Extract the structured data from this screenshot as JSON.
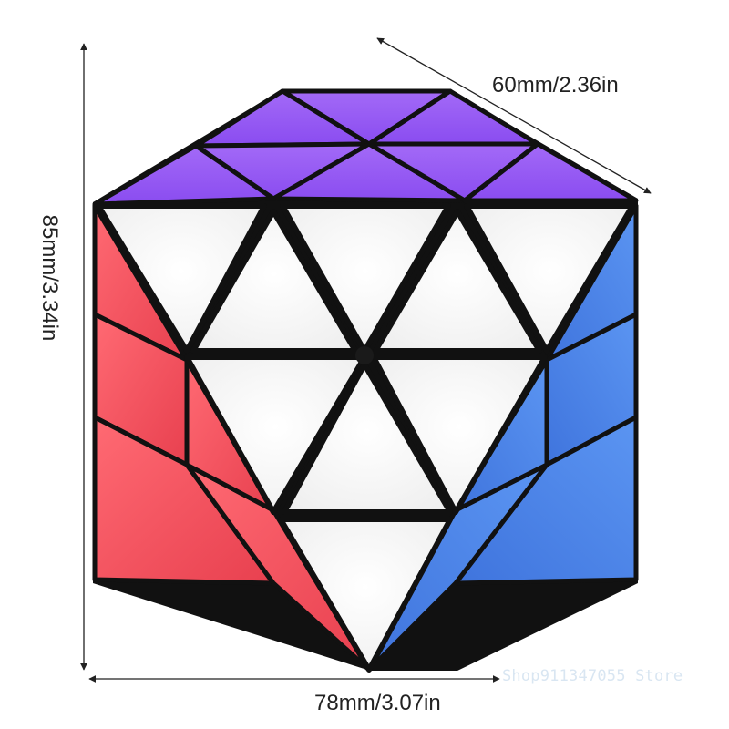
{
  "dimensions": {
    "depth": "60mm/2.36in",
    "height": "85mm/3.34in",
    "width": "78mm/3.07in"
  },
  "watermark": "Shop911347055 Store",
  "colors": {
    "top_face": "#9a5cf4",
    "front_face": "#ffffff",
    "left_face": "#f24d5c",
    "right_face": "#4d84e8",
    "plastic": "#111111",
    "dimension_line": "#222222"
  },
  "object": "twisty-puzzle-cube"
}
